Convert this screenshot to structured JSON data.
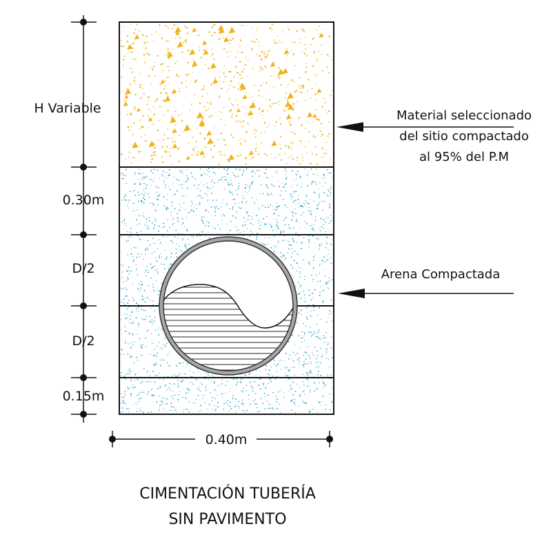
{
  "dimensions": {
    "h_variable": "H Variable",
    "backfill_top": "0.30m",
    "half_diameter_upper": "D/2",
    "half_diameter_lower": "D/2",
    "bedding": "0.15m",
    "trench_width": "0.40m"
  },
  "callouts": {
    "selected_material": [
      "Material seleccionado",
      "del sitio compactado",
      "al 95% del P.M"
    ],
    "compacted_sand": "Arena Compactada"
  },
  "title": {
    "line1": "CIMENTACIÓN TUBERÍA",
    "line2": "SIN PAVIMENTO"
  },
  "colors": {
    "selected_material_dots": "#f2b21b",
    "sand_dots": "#2aa6c4",
    "pipe_wall": "#8a8a8a",
    "lines": "#111111"
  }
}
